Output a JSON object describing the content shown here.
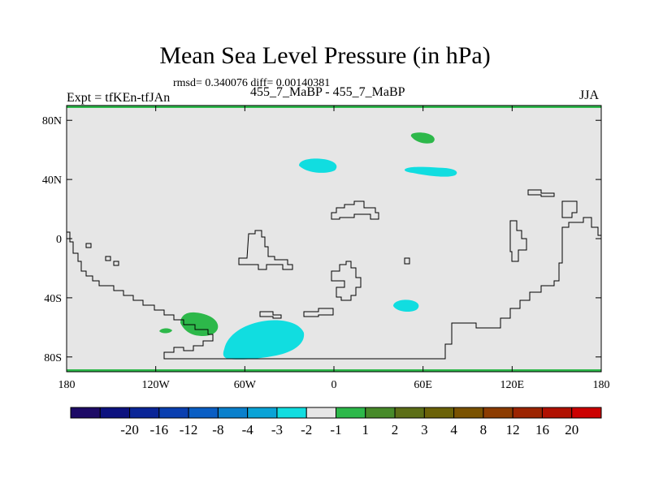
{
  "title": "Mean Sea Level Pressure (in hPa)",
  "stats": "rmsd= 0.340076 diff= 0.00140381",
  "expt_label": "Expt = tfKEn-tfJAn",
  "subtitle": "455_7_MaBP - 455_7_MaBP",
  "season": "JJA",
  "map": {
    "lon_range": [
      -180,
      180
    ],
    "lat_range": [
      -90,
      90
    ],
    "background_color": "#e6e6e6",
    "x_ticks": [
      {
        "lon": -180,
        "label": "180"
      },
      {
        "lon": -120,
        "label": "120W"
      },
      {
        "lon": -60,
        "label": "60W"
      },
      {
        "lon": 0,
        "label": "0"
      },
      {
        "lon": 60,
        "label": "60E"
      },
      {
        "lon": 120,
        "label": "120E"
      },
      {
        "lon": 180,
        "label": "180"
      }
    ],
    "y_ticks": [
      {
        "lat": 80,
        "label": "80N"
      },
      {
        "lat": 40,
        "label": "40N"
      },
      {
        "lat": 0,
        "label": "0"
      },
      {
        "lat": -40,
        "label": "40S"
      },
      {
        "lat": -80,
        "label": "80S"
      }
    ],
    "anomaly_regions": [
      {
        "name": "arctic-positive-anomaly",
        "level": "1 to 2",
        "color": "#2db84a"
      },
      {
        "name": "north-atlantic-negative-anomaly",
        "level": "-2 to -1",
        "color": "#11dde0"
      },
      {
        "name": "north-eurasia-negative-anomaly",
        "level": "-2 to -1",
        "color": "#11dde0"
      },
      {
        "name": "south-indian-ocean-negative-anomaly",
        "level": "-2 to -1",
        "color": "#11dde0"
      },
      {
        "name": "south-pacific-positive-anomaly",
        "level": "1 to 2",
        "color": "#2db84a"
      },
      {
        "name": "south-atlantic-negative-anomaly",
        "level": "-2 to -1",
        "color": "#11dde0"
      }
    ]
  },
  "colorbar": {
    "colors": [
      "#1d0a66",
      "#0c127f",
      "#0a2597",
      "#0a3fb0",
      "#0a5ec4",
      "#0a80cc",
      "#0aa3d6",
      "#11dde0",
      "#e6e6e6",
      "#2db84a",
      "#478a2a",
      "#5c6e17",
      "#6b6208",
      "#7a5200",
      "#8c3c00",
      "#9c2400",
      "#b01000",
      "#cc0000"
    ],
    "labels": [
      "-20",
      "-16",
      "-12",
      "-8",
      "-4",
      "-3",
      "-2",
      "-1",
      "1",
      "2",
      "3",
      "4",
      "8",
      "12",
      "16",
      "20"
    ]
  }
}
